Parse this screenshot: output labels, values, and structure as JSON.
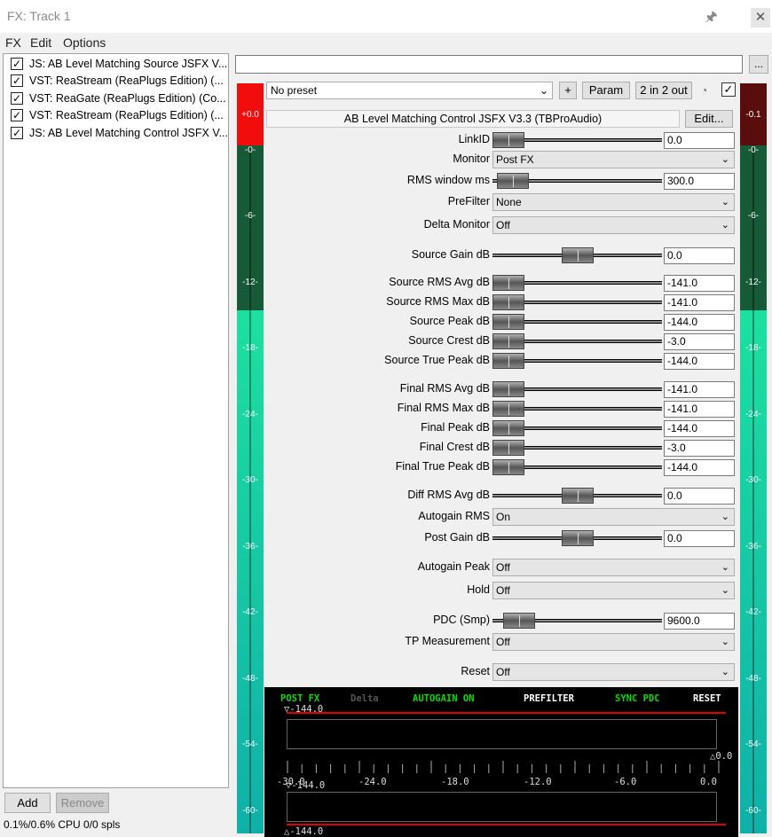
{
  "window": {
    "title": "FX: Track 1",
    "close": "✕"
  },
  "menu": [
    "FX",
    "Edit",
    "Options"
  ],
  "fx_chain": [
    {
      "label": "JS: AB Level Matching Source JSFX V...",
      "checked": true
    },
    {
      "label": "VST: ReaStream (ReaPlugs Edition) (...",
      "checked": true
    },
    {
      "label": "VST: ReaGate (ReaPlugs Edition) (Co...",
      "checked": true
    },
    {
      "label": "VST: ReaStream (ReaPlugs Edition) (...",
      "checked": true
    },
    {
      "label": "JS: AB Level Matching Control JSFX V...",
      "checked": true
    }
  ],
  "buttons": {
    "add": "Add",
    "remove": "Remove",
    "browse": "...",
    "plus": "+",
    "param": "Param",
    "io": "2 in 2 out",
    "edit": "Edit..."
  },
  "status": "0.1%/0.6% CPU 0/0 spls",
  "preset": "No preset",
  "plugin_title": "AB Level Matching Control JSFX V3.3 (TBProAudio)",
  "meters": {
    "left_peak": "+0.0",
    "right_peak": "-0.1",
    "ticks": [
      "-0-",
      "-6-",
      "-12-",
      "-18-",
      "-24-",
      "-30-",
      "-36-",
      "-42-",
      "-48-",
      "-54-",
      "-60-"
    ]
  },
  "params": [
    {
      "label": "LinkID",
      "type": "slider",
      "value": "0.0",
      "pos": 0.0
    },
    {
      "label": "Monitor",
      "type": "drop",
      "value": "Post FX"
    },
    {
      "label": "RMS window ms",
      "type": "slider",
      "value": "300.0",
      "pos": 0.03
    },
    {
      "label": "PreFilter",
      "type": "drop",
      "value": "None"
    },
    {
      "label": "Delta Monitor",
      "type": "drop",
      "value": "Off"
    },
    {
      "label": "Source Gain dB",
      "type": "slider",
      "value": "0.0",
      "pos": 0.5
    },
    {
      "label": "Source RMS Avg dB",
      "type": "slider",
      "value": "-141.0",
      "pos": 0.0
    },
    {
      "label": "Source RMS Max dB",
      "type": "slider",
      "value": "-141.0",
      "pos": 0.0
    },
    {
      "label": "Source Peak dB",
      "type": "slider",
      "value": "-144.0",
      "pos": 0.0
    },
    {
      "label": "Source Crest dB",
      "type": "slider",
      "value": "-3.0",
      "pos": 0.0
    },
    {
      "label": "Source True Peak dB",
      "type": "slider",
      "value": "-144.0",
      "pos": 0.0
    },
    {
      "label": "Final RMS Avg dB",
      "type": "slider",
      "value": "-141.0",
      "pos": 0.0
    },
    {
      "label": "Final RMS Max dB",
      "type": "slider",
      "value": "-141.0",
      "pos": 0.0
    },
    {
      "label": "Final Peak dB",
      "type": "slider",
      "value": "-144.0",
      "pos": 0.0
    },
    {
      "label": "Final Crest dB",
      "type": "slider",
      "value": "-3.0",
      "pos": 0.0
    },
    {
      "label": "Final True Peak dB",
      "type": "slider",
      "value": "-144.0",
      "pos": 0.0
    },
    {
      "label": "Diff RMS Avg dB",
      "type": "slider",
      "value": "0.0",
      "pos": 0.5
    },
    {
      "label": "Autogain RMS",
      "type": "drop",
      "value": "On"
    },
    {
      "label": "Post Gain dB",
      "type": "slider",
      "value": "0.0",
      "pos": 0.5
    },
    {
      "label": "Autogain Peak",
      "type": "drop",
      "value": "Off"
    },
    {
      "label": "Hold",
      "type": "drop",
      "value": "Off"
    },
    {
      "label": "PDC (Smp)",
      "type": "slider",
      "value": "9600.0",
      "pos": 0.08
    },
    {
      "label": "TP Measurement",
      "type": "drop",
      "value": "Off"
    },
    {
      "label": "Reset",
      "type": "drop",
      "value": "Off"
    }
  ],
  "display": {
    "header": [
      {
        "text": "POST FX",
        "color": "#00e000"
      },
      {
        "text": "Delta",
        "color": "#555555"
      },
      {
        "text": "AUTOGAIN ON",
        "color": "#00e000"
      },
      {
        "text": "PREFILTER",
        "color": "#ffffff"
      },
      {
        "text": "SYNC PDC",
        "color": "#00e000"
      },
      {
        "text": "RESET",
        "color": "#ffffff"
      }
    ],
    "top_marker": "-144.0",
    "right_marker": "0.0",
    "scale": [
      "-30.0",
      "-24.0",
      "-18.0",
      "-12.0",
      "-6.0",
      "0.0"
    ],
    "mid_marker": "-144.0",
    "bottom_marker": "-144.0"
  }
}
